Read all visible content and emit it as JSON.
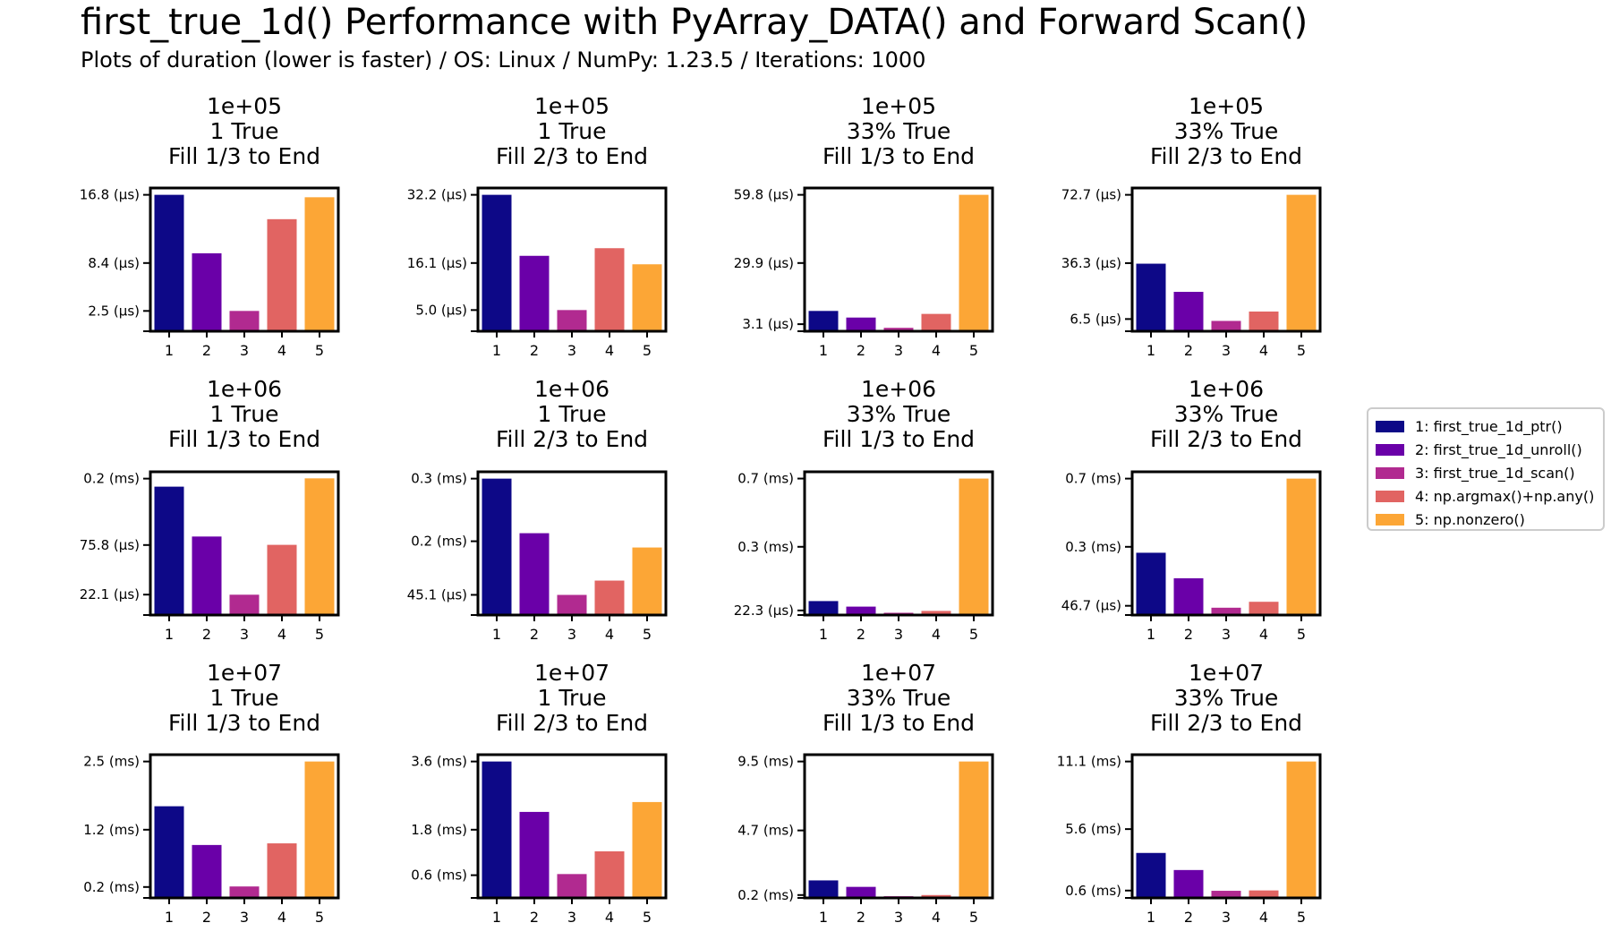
{
  "title": "first_true_1d() Performance with PyArray_DATA() and Forward Scan()",
  "subtitle": "Plots of duration (lower is faster) / OS: Linux / NumPy: 1.23.5 / Iterations: 1000",
  "colors": [
    "#0d0887",
    "#6a00a8",
    "#b12a90",
    "#e16462",
    "#fca636"
  ],
  "legend": [
    "1: first_true_1d_ptr()",
    "2: first_true_1d_unroll()",
    "3: first_true_1d_scan()",
    "4: np.argmax()+np.any()",
    "5: np.nonzero()"
  ],
  "chart_data": [
    {
      "type": "bar",
      "title": [
        "1e+05",
        "1 True",
        "Fill 1/3 to End"
      ],
      "categories": [
        "1",
        "2",
        "3",
        "4",
        "5"
      ],
      "values": [
        16.8,
        9.6,
        2.5,
        13.8,
        16.5
      ],
      "ylim": [
        0,
        17.64
      ],
      "yticks": [
        16.8,
        8.4,
        2.5
      ],
      "ytick_labels": [
        "16.8 (µs)",
        "8.4 (µs)",
        "2.5 (µs)"
      ]
    },
    {
      "type": "bar",
      "title": [
        "1e+05",
        "1 True",
        "Fill 2/3 to End"
      ],
      "categories": [
        "1",
        "2",
        "3",
        "4",
        "5"
      ],
      "values": [
        32.2,
        17.8,
        5.0,
        19.6,
        15.8
      ],
      "ylim": [
        0,
        33.81
      ],
      "yticks": [
        32.2,
        16.1,
        5.0
      ],
      "ytick_labels": [
        "32.2 (µs)",
        "16.1 (µs)",
        "5.0 (µs)"
      ]
    },
    {
      "type": "bar",
      "title": [
        "1e+05",
        "33% True",
        "Fill 1/3 to End"
      ],
      "categories": [
        "1",
        "2",
        "3",
        "4",
        "5"
      ],
      "values": [
        8.9,
        6.0,
        1.5,
        7.6,
        59.8
      ],
      "ylim": [
        0,
        62.79
      ],
      "yticks": [
        59.8,
        29.9,
        3.1
      ],
      "ytick_labels": [
        "59.8 (µs)",
        "29.9 (µs)",
        "3.1 (µs)"
      ]
    },
    {
      "type": "bar",
      "title": [
        "1e+05",
        "33% True",
        "Fill 2/3 to End"
      ],
      "categories": [
        "1",
        "2",
        "3",
        "4",
        "5"
      ],
      "values": [
        36.0,
        21.0,
        5.5,
        10.5,
        72.7
      ],
      "ylim": [
        0,
        76.335
      ],
      "yticks": [
        72.7,
        36.3,
        6.5
      ],
      "ytick_labels": [
        "72.7 (µs)",
        "36.3 (µs)",
        "6.5 (µs)"
      ]
    },
    {
      "type": "bar",
      "title": [
        "1e+06",
        "1 True",
        "Fill 1/3 to End"
      ],
      "categories": [
        "1",
        "2",
        "3",
        "4",
        "5"
      ],
      "values": [
        0.139,
        0.085,
        0.022,
        0.076,
        0.148
      ],
      "ylim": [
        0,
        0.1551
      ],
      "yticks": [
        0.1477,
        0.0758,
        0.0221
      ],
      "ytick_labels": [
        "0.2 (ms)",
        "75.8 (µs)",
        "22.1 (µs)"
      ]
    },
    {
      "type": "bar",
      "title": [
        "1e+06",
        "1 True",
        "Fill 2/3 to End"
      ],
      "categories": [
        "1",
        "2",
        "3",
        "4",
        "5"
      ],
      "values": [
        0.305,
        0.183,
        0.045,
        0.077,
        0.151
      ],
      "ylim": [
        0,
        0.3203
      ],
      "yticks": [
        0.305,
        0.165,
        0.0451
      ],
      "ytick_labels": [
        "0.3 (ms)",
        "0.2 (ms)",
        "45.1 (µs)"
      ]
    },
    {
      "type": "bar",
      "title": [
        "1e+06",
        "33% True",
        "Fill 1/3 to End"
      ],
      "categories": [
        "1",
        "2",
        "3",
        "4",
        "5"
      ],
      "values": [
        0.068,
        0.041,
        0.011,
        0.02,
        0.665
      ],
      "ylim": [
        0,
        0.698
      ],
      "yticks": [
        0.665,
        0.3325,
        0.0223
      ],
      "ytick_labels": [
        "0.7 (ms)",
        "0.3 (ms)",
        "22.3 (µs)"
      ]
    },
    {
      "type": "bar",
      "title": [
        "1e+06",
        "33% True",
        "Fill 2/3 to End"
      ],
      "categories": [
        "1",
        "2",
        "3",
        "4",
        "5"
      ],
      "values": [
        0.315,
        0.186,
        0.037,
        0.067,
        0.69
      ],
      "ylim": [
        0,
        0.7245
      ],
      "yticks": [
        0.69,
        0.345,
        0.0467
      ],
      "ytick_labels": [
        "0.7 (ms)",
        "0.3 (ms)",
        "46.7 (µs)"
      ]
    },
    {
      "type": "bar",
      "title": [
        "1e+07",
        "1 True",
        "Fill 1/3 to End"
      ],
      "categories": [
        "1",
        "2",
        "3",
        "4",
        "5"
      ],
      "values": [
        1.68,
        0.97,
        0.21,
        1.0,
        2.5
      ],
      "ylim": [
        0,
        2.625
      ],
      "yticks": [
        2.5,
        1.25,
        0.2
      ],
      "ytick_labels": [
        "2.5 (ms)",
        "1.2 (ms)",
        "0.2 (ms)"
      ]
    },
    {
      "type": "bar",
      "title": [
        "1e+07",
        "1 True",
        "Fill 2/3 to End"
      ],
      "categories": [
        "1",
        "2",
        "3",
        "4",
        "5"
      ],
      "values": [
        3.6,
        2.27,
        0.63,
        1.23,
        2.53
      ],
      "ylim": [
        0,
        3.78
      ],
      "yticks": [
        3.6,
        1.8,
        0.6
      ],
      "ytick_labels": [
        "3.6 (ms)",
        "1.8 (ms)",
        "0.6 (ms)"
      ]
    },
    {
      "type": "bar",
      "title": [
        "1e+07",
        "33% True",
        "Fill 1/3 to End"
      ],
      "categories": [
        "1",
        "2",
        "3",
        "4",
        "5"
      ],
      "values": [
        1.22,
        0.77,
        0.12,
        0.2,
        9.5
      ],
      "ylim": [
        0,
        9.975
      ],
      "yticks": [
        9.5,
        4.7,
        0.2
      ],
      "ytick_labels": [
        "9.5 (ms)",
        "4.7 (ms)",
        "0.2 (ms)"
      ]
    },
    {
      "type": "bar",
      "title": [
        "1e+07",
        "33% True",
        "Fill 2/3 to End"
      ],
      "categories": [
        "1",
        "2",
        "3",
        "4",
        "5"
      ],
      "values": [
        3.66,
        2.27,
        0.58,
        0.61,
        11.1
      ],
      "ylim": [
        0,
        11.655
      ],
      "yticks": [
        11.1,
        5.6,
        0.6
      ],
      "ytick_labels": [
        "11.1 (ms)",
        "5.6 (ms)",
        "0.6 (ms)"
      ]
    }
  ]
}
